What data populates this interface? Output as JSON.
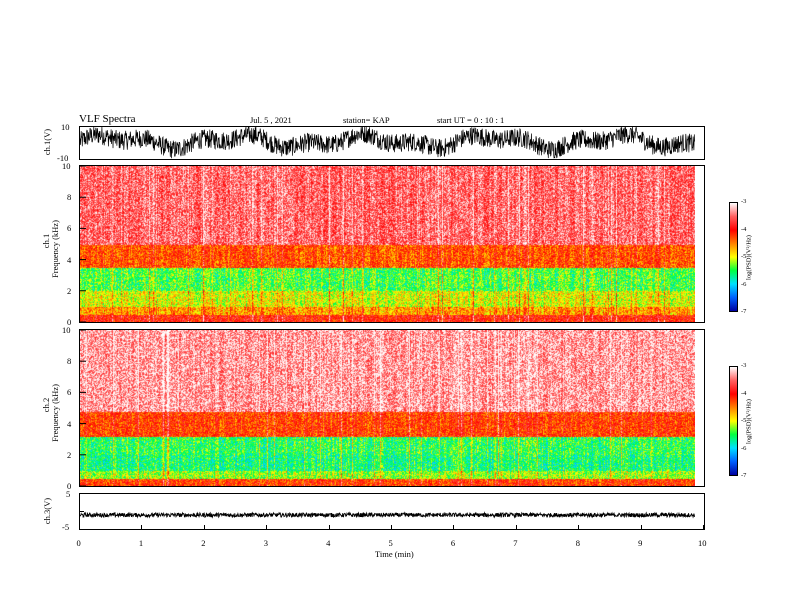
{
  "header": {
    "title": "VLF Spectra",
    "date": "Jul. 5 , 2021",
    "station": "station= KAP",
    "start": "start  UT =  0 : 10 : 1"
  },
  "chart_data": [
    {
      "type": "line",
      "panel": "ch1-waveform",
      "ylabel": "ch.1(V)",
      "ylim": [
        -10,
        10
      ],
      "yticks": [
        "10",
        "-10"
      ],
      "xlim": [
        0,
        10
      ],
      "data_extent_min": 9.85,
      "description_level": "noisy oscillating signal mostly between -7 and +9 V"
    },
    {
      "type": "heatmap",
      "panel": "ch1-spectrogram",
      "ylabel": "ch.1\nFrequency (kHz)",
      "ylabel_line1": "ch.1",
      "ylabel_line2": "Frequency (kHz)",
      "ylim": [
        0,
        10
      ],
      "yticks": [
        "0",
        "2",
        "4",
        "6",
        "8",
        "10"
      ],
      "xlim": [
        0,
        10
      ],
      "data_extent_min": 9.85,
      "colorbar": {
        "label": "log(PSD)(V²/Hz)",
        "range": [
          -7,
          -3
        ],
        "ticks": [
          "-3",
          "-4",
          "-5",
          "-6",
          "-7"
        ]
      },
      "bands": [
        {
          "f_low": 0,
          "f_high": 0.5,
          "level": -4.0
        },
        {
          "f_low": 0.5,
          "f_high": 1.0,
          "level": -4.6
        },
        {
          "f_low": 1.0,
          "f_high": 2.0,
          "level": -5.0
        },
        {
          "f_low": 2.0,
          "f_high": 3.5,
          "level": -5.4
        },
        {
          "f_low": 3.5,
          "f_high": 5.0,
          "level": -4.3
        },
        {
          "f_low": 5.0,
          "f_high": 10.0,
          "level": -3.5
        }
      ]
    },
    {
      "type": "heatmap",
      "panel": "ch2-spectrogram",
      "ylabel_line1": "ch.2",
      "ylabel_line2": "Frequency (kHz)",
      "ylim": [
        0,
        10
      ],
      "yticks": [
        "0",
        "2",
        "4",
        "6",
        "8",
        "10"
      ],
      "xlim": [
        0,
        10
      ],
      "data_extent_min": 9.85,
      "colorbar": {
        "label": "log(PSD)(V²/Hz)",
        "range": [
          -7,
          -3
        ],
        "ticks": [
          "-3",
          "-4",
          "-5",
          "-6",
          "-7"
        ]
      },
      "bands": [
        {
          "f_low": 0,
          "f_high": 0.5,
          "level": -4.2
        },
        {
          "f_low": 0.5,
          "f_high": 1.0,
          "level": -5.2
        },
        {
          "f_low": 1.0,
          "f_high": 2.0,
          "level": -5.6
        },
        {
          "f_low": 2.0,
          "f_high": 3.2,
          "level": -5.5
        },
        {
          "f_low": 3.2,
          "f_high": 4.8,
          "level": -4.2
        },
        {
          "f_low": 4.8,
          "f_high": 10.0,
          "level": -3.3
        }
      ]
    },
    {
      "type": "line",
      "panel": "ch3-waveform",
      "ylabel": "ch.3(V)",
      "ylim": [
        -5,
        5
      ],
      "yticks": [
        "5",
        "0",
        "-5"
      ],
      "xlim": [
        0,
        10
      ],
      "data_extent_min": 9.85,
      "description_level": "flat band of noise around -1 V"
    }
  ],
  "xaxis": {
    "label": "Time (min)",
    "ticks": [
      "0",
      "1",
      "2",
      "3",
      "4",
      "5",
      "6",
      "7",
      "8",
      "9",
      "10"
    ]
  },
  "colors": {
    "colormap": [
      "#0000a0",
      "#0060ff",
      "#00e0ff",
      "#00ff40",
      "#ffff00",
      "#ff8000",
      "#ff0000",
      "#ff6060",
      "#ffffff"
    ]
  }
}
